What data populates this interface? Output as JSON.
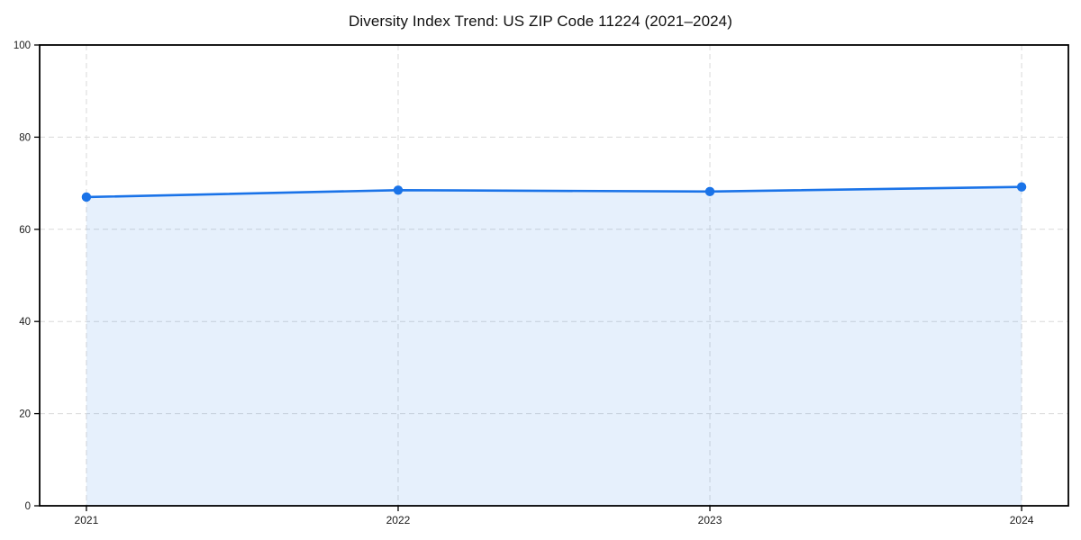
{
  "chart_data": {
    "type": "line",
    "title": "Diversity Index Trend: US ZIP Code 11224 (2021–2024)",
    "x": [
      2021,
      2022,
      2023,
      2024
    ],
    "x_labels": [
      "2021",
      "2022",
      "2023",
      "2024"
    ],
    "series": [
      {
        "name": "Diversity Index",
        "values": [
          67.0,
          68.5,
          68.2,
          69.2
        ]
      }
    ],
    "xlabel": "",
    "ylabel": "",
    "ylim": [
      0,
      100
    ],
    "yticks": [
      0,
      20,
      40,
      60,
      80,
      100
    ],
    "ytick_labels": [
      "0",
      "20",
      "40",
      "60",
      "80",
      "100"
    ],
    "xlim": [
      2020.85,
      2024.15
    ],
    "grid": "dashed-both-axes",
    "legend": "none",
    "area_fill": true,
    "colors": {
      "line": "#1a73e8",
      "marker": "#1a73e8",
      "area_fill": "#1a73e8",
      "grid": "#d9d9d9",
      "spine": "#000000",
      "tick_label": "#1a1a1a",
      "background": "#ffffff"
    },
    "area_fill_opacity": 0.11
  }
}
